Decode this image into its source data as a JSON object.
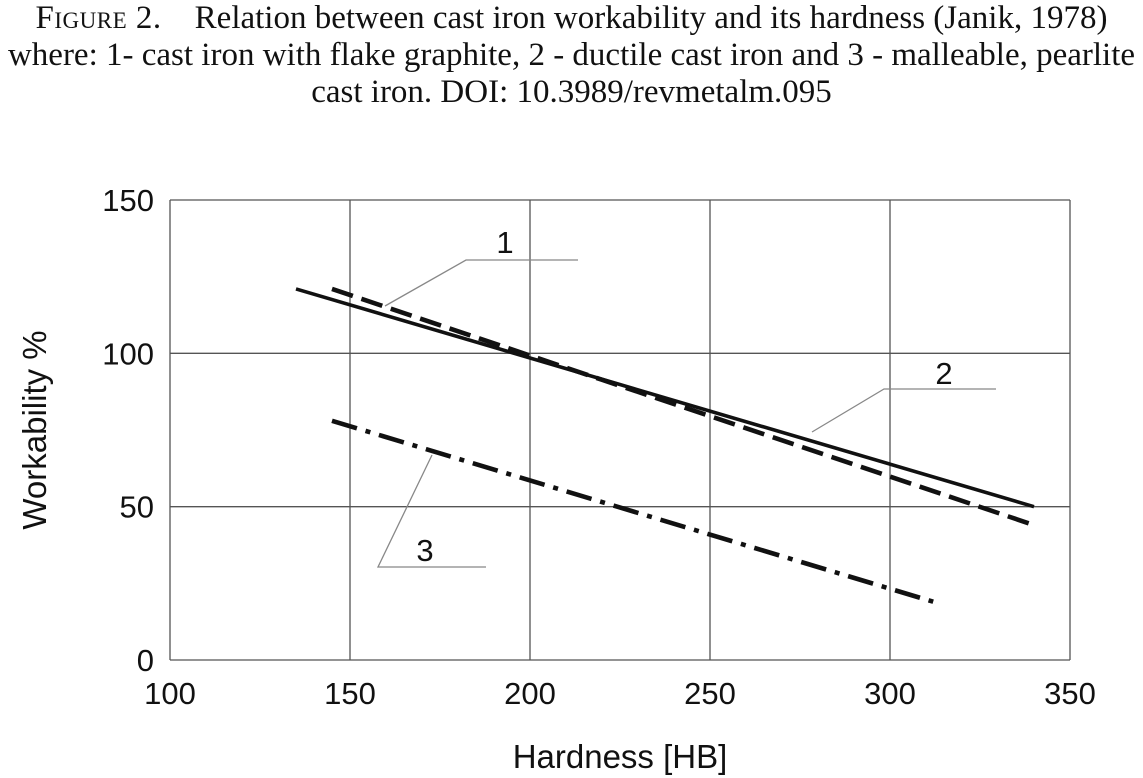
{
  "caption": {
    "lead": "Figure 2.",
    "text": "Relation between cast iron workability and its hardness (Janik, 1978) where: 1- cast iron with flake graphite, 2 - ductile cast iron and 3 - malleable, pearlite cast iron. DOI: 10.3989/revmetalm.095"
  },
  "chart_data": {
    "type": "line",
    "title": "",
    "xlabel": "Hardness [HB]",
    "ylabel": "Workability %",
    "xlim": [
      100,
      350
    ],
    "ylim": [
      0,
      150
    ],
    "xticks": [
      100,
      150,
      200,
      250,
      300,
      350
    ],
    "yticks": [
      0,
      50,
      100,
      150
    ],
    "grid": true,
    "legend": "none",
    "series": [
      {
        "label": "1",
        "style": "solid",
        "x": [
          135,
          340
        ],
        "y": [
          121,
          50
        ]
      },
      {
        "label": "2",
        "style": "dashed",
        "x": [
          145,
          340
        ],
        "y": [
          121,
          44
        ]
      },
      {
        "label": "3",
        "style": "dash-dot",
        "x": [
          145,
          312
        ],
        "y": [
          78,
          19
        ]
      }
    ],
    "colors": {
      "line": "#111111",
      "grid": "#555555",
      "leader": "#888888"
    }
  }
}
